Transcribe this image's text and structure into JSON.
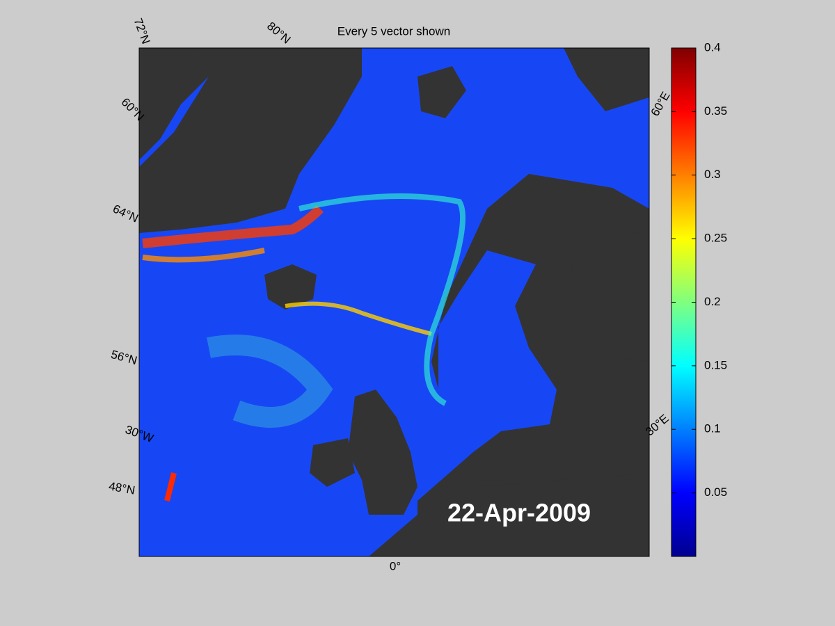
{
  "title": "Every 5 vector shown",
  "date_label": "22-Apr-2009",
  "grid_labels": [
    "72°N",
    "80°N",
    "60°N",
    "64°N",
    "56°N",
    "30°W",
    "48°N",
    "0°",
    "60°E",
    "30°E"
  ],
  "colorbar": {
    "lim": [
      0,
      0.4
    ],
    "ticks": [
      0.05,
      0.1,
      0.15,
      0.2,
      0.25,
      0.3,
      0.35,
      0.4
    ]
  }
}
